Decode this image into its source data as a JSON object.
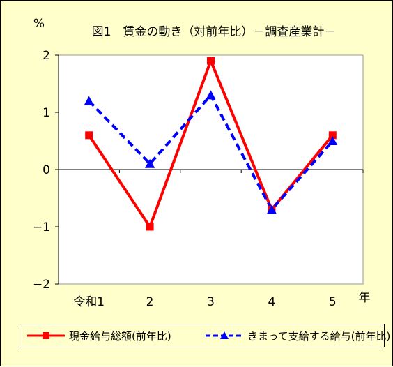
{
  "chart_data": {
    "type": "line",
    "title": "図1　賃金の動き（対前年比）－調査産業計－",
    "ylabel": "%",
    "xlabel": "年",
    "categories": [
      "令和1",
      "2",
      "3",
      "4",
      "5"
    ],
    "ylim": [
      -2,
      2
    ],
    "yticks": [
      2,
      1,
      0,
      -1,
      -2
    ],
    "ytick_labels": [
      "2",
      "1",
      "0",
      "−1",
      "−2"
    ],
    "grid": false,
    "legend_position": "bottom",
    "series": [
      {
        "name": "現金給与総額(前年比)",
        "values": [
          0.6,
          -1.0,
          1.9,
          -0.7,
          0.6
        ],
        "color": "#ff0000",
        "line_style": "solid",
        "marker": "square"
      },
      {
        "name": "きまって支給する給与(前年比)",
        "values": [
          1.2,
          0.1,
          1.3,
          -0.7,
          0.5
        ],
        "color": "#0000ff",
        "line_style": "dashed",
        "marker": "triangle"
      }
    ]
  }
}
